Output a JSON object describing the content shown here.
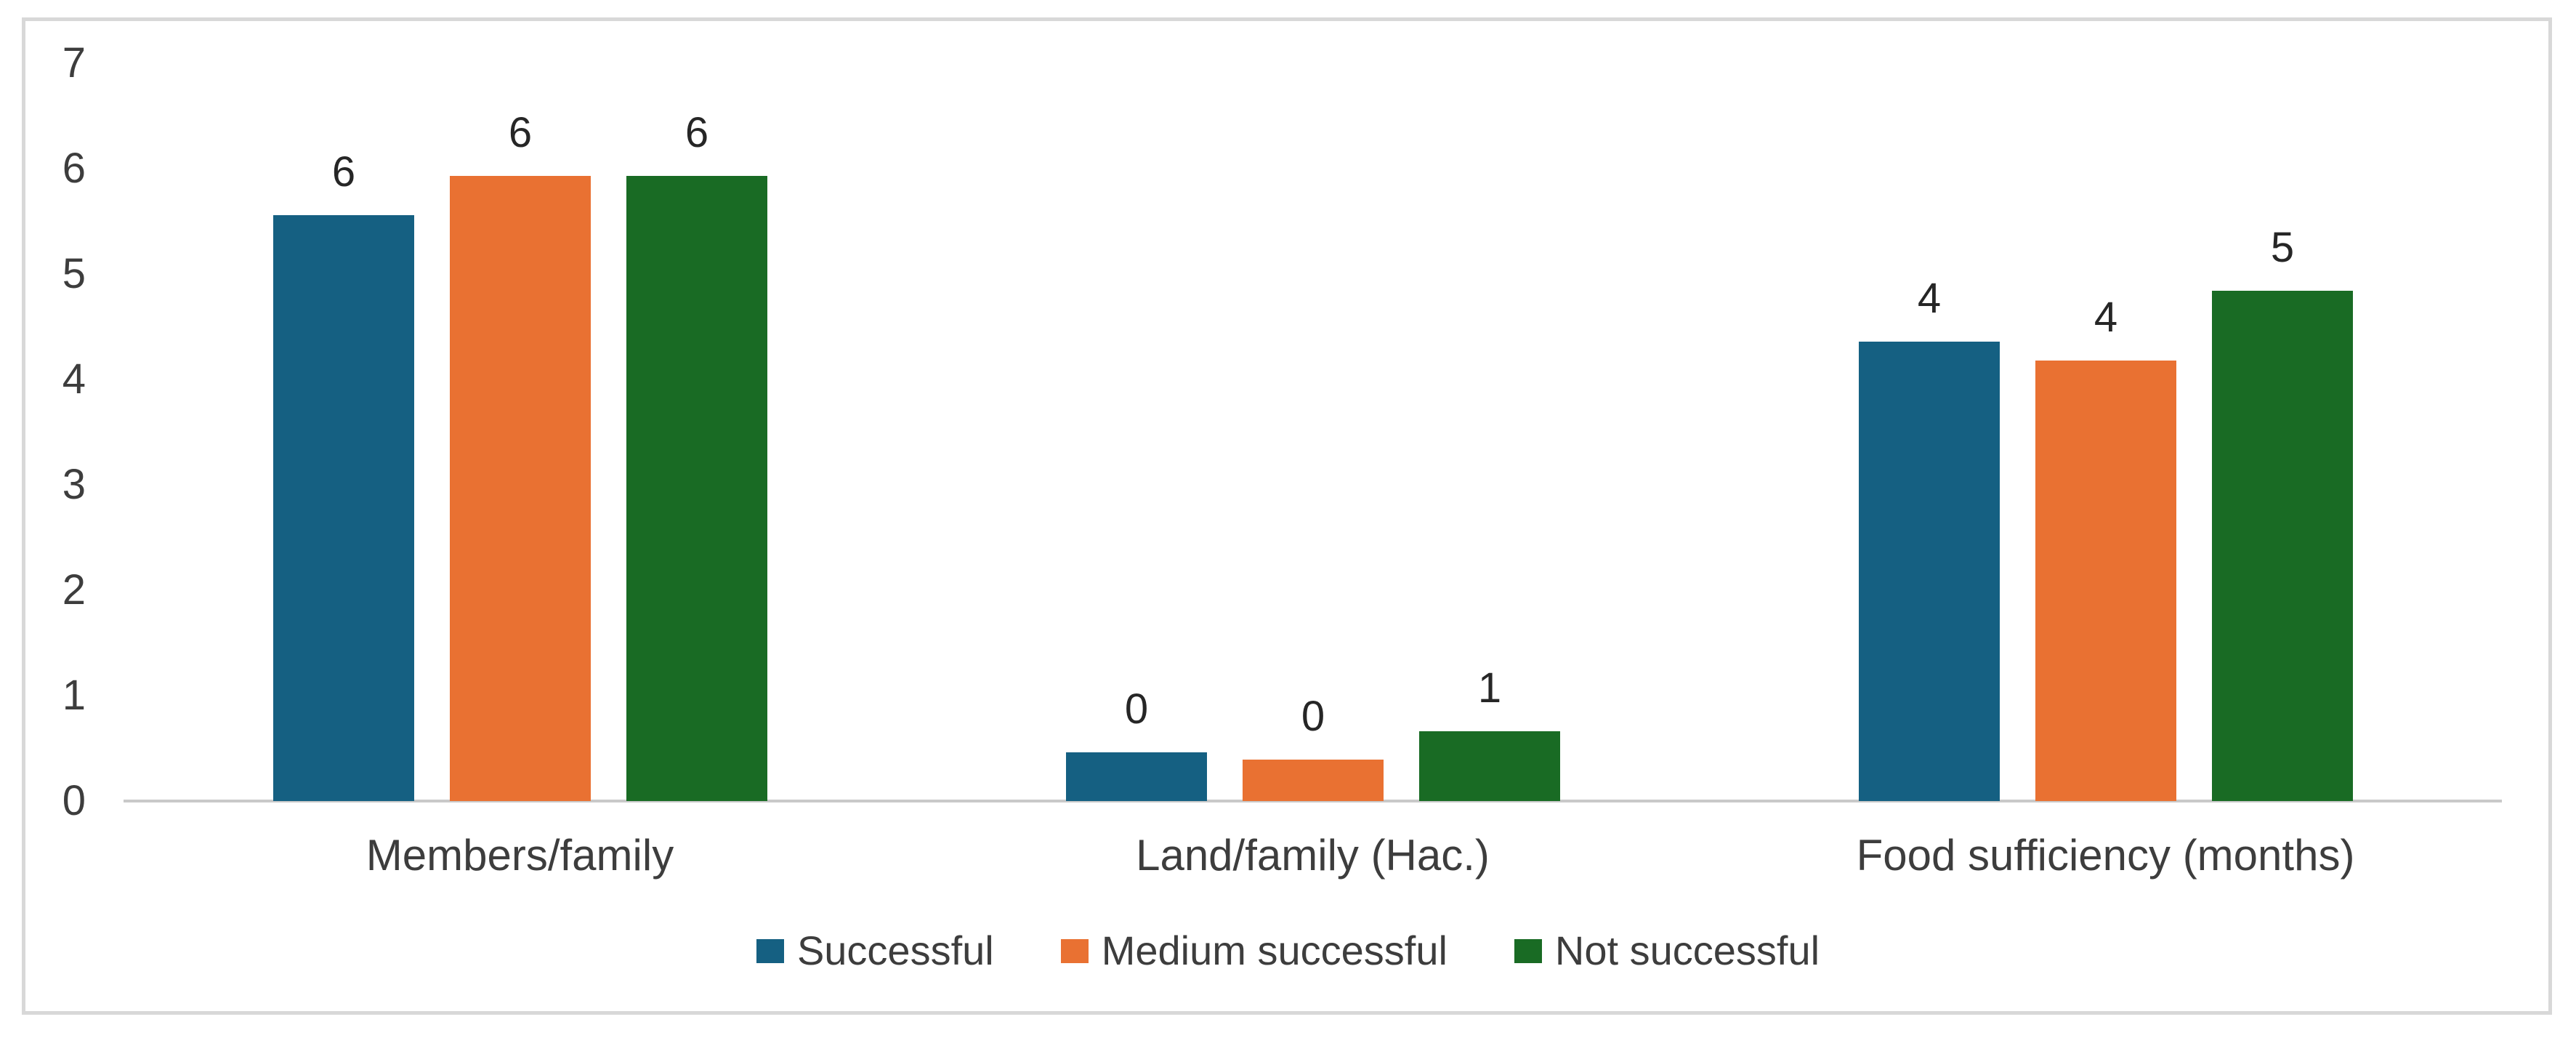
{
  "chart_data": {
    "type": "bar",
    "title": "",
    "xlabel": "",
    "ylabel": "",
    "categories": [
      "Members/family",
      "Land/family (Hac.)",
      "Food sufficiency (months)"
    ],
    "series": [
      {
        "name": "Successful",
        "color": "#156082",
        "values": [
          5.56,
          0.46,
          4.36
        ],
        "data_labels": [
          "6",
          "0",
          "4"
        ]
      },
      {
        "name": "Medium successful",
        "color": "#E97132",
        "values": [
          5.93,
          0.39,
          4.18
        ],
        "data_labels": [
          "6",
          "0",
          "4"
        ]
      },
      {
        "name": "Not successful",
        "color": "#196B24",
        "values": [
          5.93,
          0.66,
          4.84
        ],
        "data_labels": [
          "6",
          "1",
          "5"
        ]
      }
    ],
    "y_ticks": [
      "0",
      "1",
      "2",
      "3",
      "4",
      "5",
      "6",
      "7"
    ],
    "ylim": [
      0,
      7
    ],
    "grid": false,
    "legend_position": "bottom",
    "colors": {
      "axis_line": "#c9c9c9",
      "frame_border": "#d8d8d8",
      "tick_text": "#3d3d3d",
      "data_label_text": "#262626",
      "background": "#ffffff"
    }
  }
}
